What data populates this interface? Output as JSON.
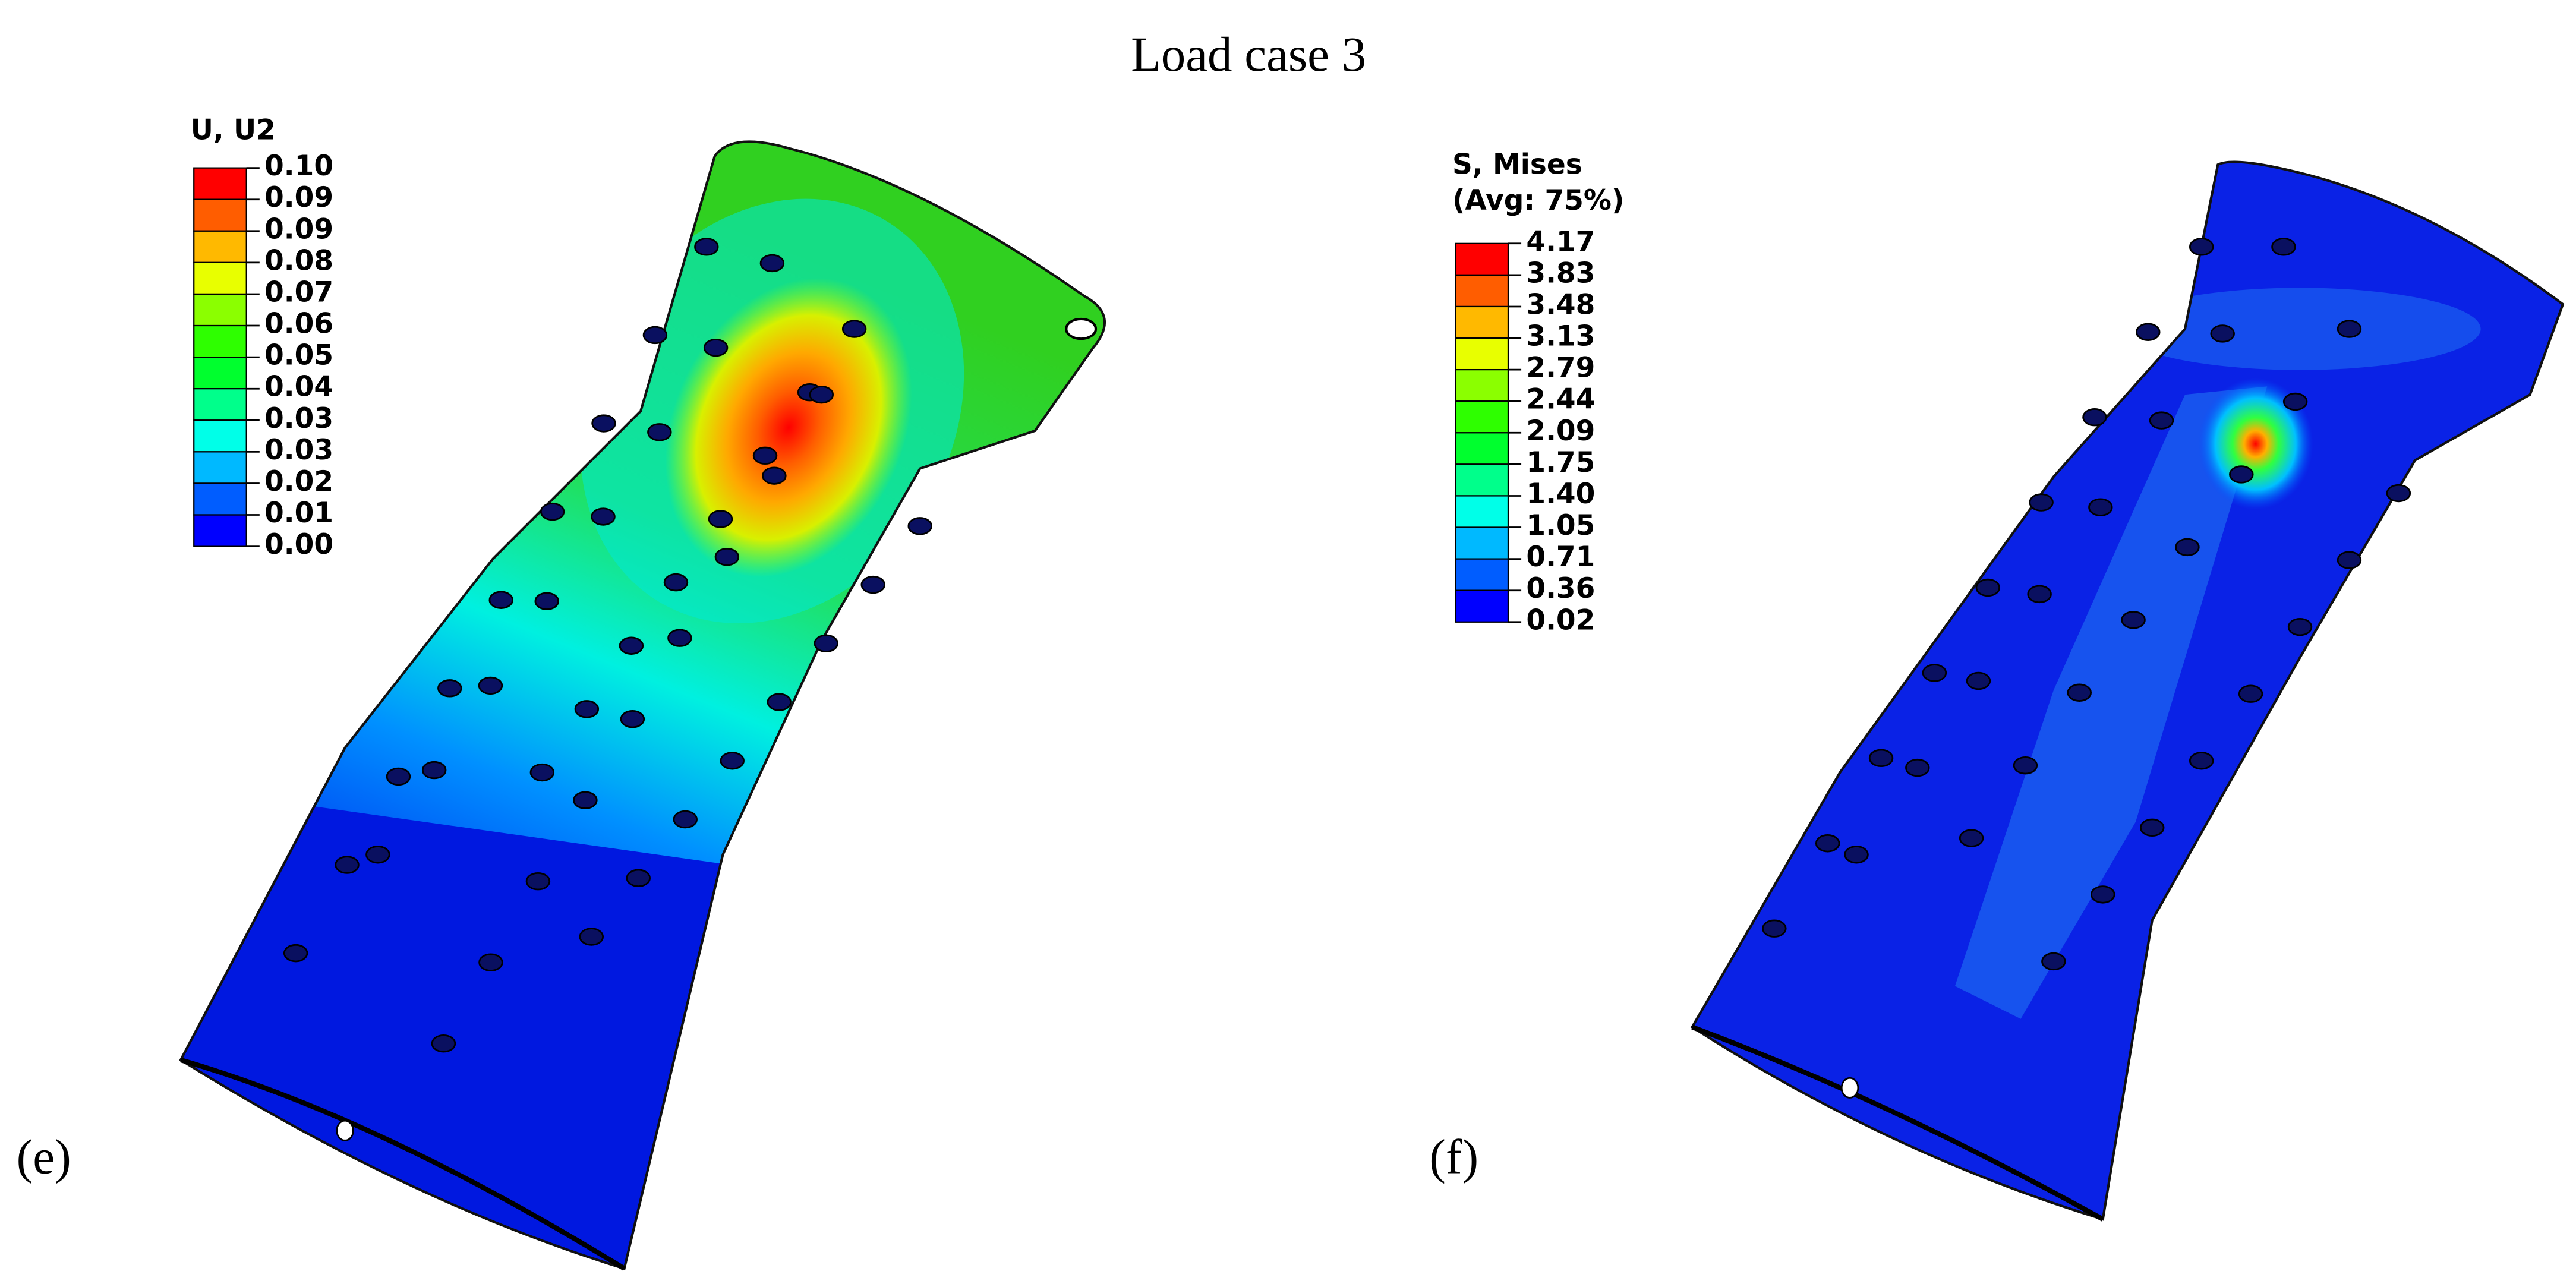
{
  "title": "Load case 3",
  "panels": [
    {
      "label": "(e)",
      "legend": {
        "title": [
          "U, U2"
        ],
        "labels": [
          "0.10",
          "0.09",
          "0.09",
          "0.08",
          "0.07",
          "0.06",
          "0.05",
          "0.04",
          "0.03",
          "0.03",
          "0.02",
          "0.01",
          "0.00"
        ]
      }
    },
    {
      "label": "(f)",
      "legend": {
        "title": [
          "S, Mises",
          "(Avg: 75%)"
        ],
        "labels": [
          "4.17",
          "3.83",
          "3.48",
          "3.13",
          "2.79",
          "2.44",
          "2.09",
          "1.75",
          "1.40",
          "1.05",
          "0.71",
          "0.36",
          "0.02"
        ]
      }
    }
  ]
}
